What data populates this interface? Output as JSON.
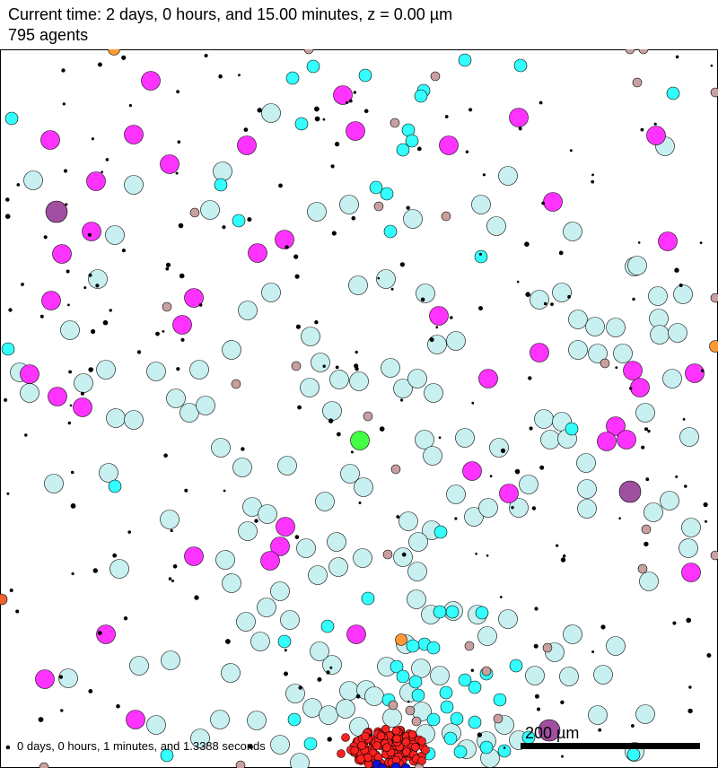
{
  "header": {
    "time_text": "Current time: 2 days, 0 hours, and 15.00 minutes, z = 0.00 µm",
    "agent_count": "795 agents"
  },
  "footer": {
    "runtime_text": "0 days, 0 hours, 1 minutes, and 1.3388 seconds"
  },
  "scale_bar": {
    "label": "200 µm"
  },
  "colors": {
    "pale_cyan": "#c8f0f0",
    "cyan": "#33ffff",
    "magenta": "#ff33ff",
    "purple": "#a050a0",
    "tan": "#c8a0a0",
    "orange": "#ff9933",
    "red": "#ff2020",
    "green": "#44ff44",
    "blue": "#1010d0",
    "black": "#000000"
  }
}
